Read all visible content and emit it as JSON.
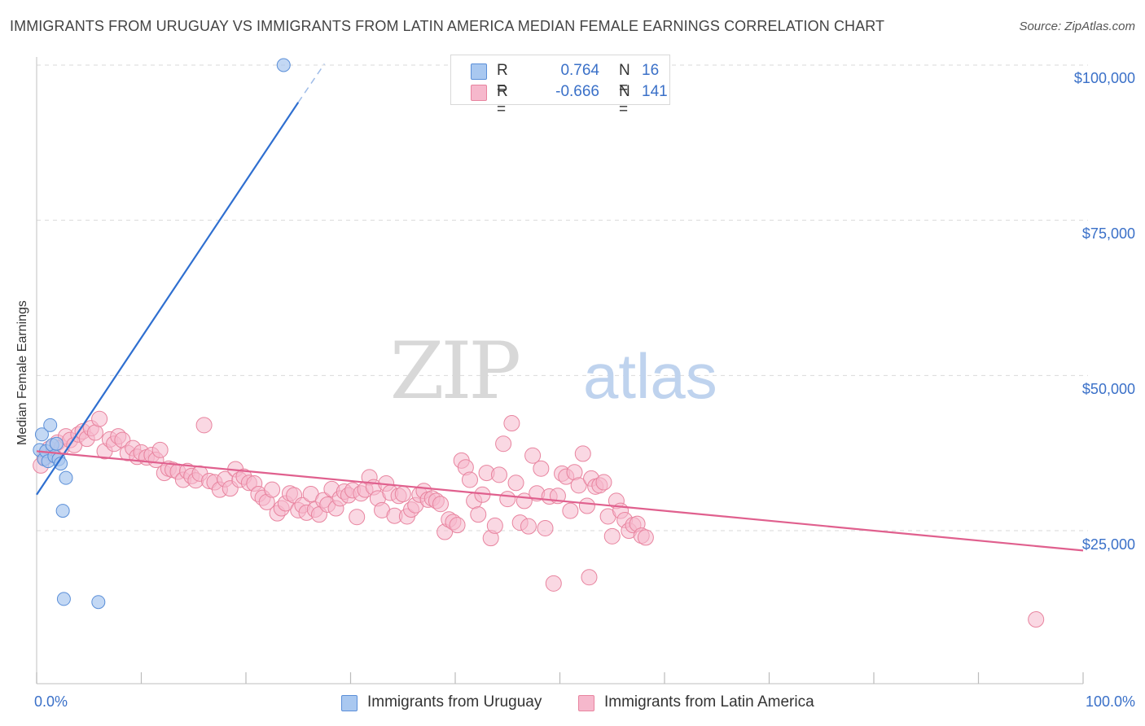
{
  "title": "IMMIGRANTS FROM URUGUAY VS IMMIGRANTS FROM LATIN AMERICA MEDIAN FEMALE EARNINGS CORRELATION CHART",
  "source": "Source: ZipAtlas.com",
  "watermark": {
    "zip": "ZIP",
    "atlas": "atlas"
  },
  "colors": {
    "uruguay_fill": "#a9c8f0",
    "uruguay_stroke": "#5b8fd8",
    "uruguay_line": "#2f6fd0",
    "latam_fill": "#f6b8cc",
    "latam_stroke": "#e8849f",
    "latam_line": "#e0608e",
    "grid": "#d9d9d9",
    "tick_text": "#3a70c8"
  },
  "legend_top": {
    "rows": [
      {
        "r_label": "R =",
        "r_value": "0.764",
        "n_label": "N =",
        "n_value": "16"
      },
      {
        "r_label": "R =",
        "r_value": "-0.666",
        "n_label": "N =",
        "n_value": "141"
      }
    ]
  },
  "legend_bottom": [
    "Immigrants from Uruguay",
    "Immigrants from Latin America"
  ],
  "chart_data": {
    "type": "scatter",
    "title": "IMMIGRANTS FROM URUGUAY VS IMMIGRANTS FROM LATIN AMERICA MEDIAN FEMALE EARNINGS CORRELATION CHART",
    "xlabel": "",
    "ylabel": "Median Female Earnings",
    "xlim": [
      0,
      100
    ],
    "ylim": [
      0,
      103000
    ],
    "x_tick_labels": [
      "0.0%",
      "100.0%"
    ],
    "y_ticks": [
      25000,
      50000,
      75000,
      100000
    ],
    "y_tick_labels": [
      "$25,000",
      "$50,000",
      "$75,000",
      "$100,000"
    ],
    "grid": true,
    "legend_position": "top-center",
    "series": [
      {
        "name": "Immigrants from Uruguay",
        "r": 0.764,
        "n": 16,
        "trend": {
          "x0": 0,
          "y0": 30800,
          "x1": 25,
          "y1": 94000,
          "dash_to_x": 27.5,
          "dash_to_y": 100200
        },
        "points": [
          [
            0.3,
            38000
          ],
          [
            0.5,
            40500
          ],
          [
            0.7,
            36500
          ],
          [
            0.9,
            37800
          ],
          [
            1.1,
            36200
          ],
          [
            1.3,
            42000
          ],
          [
            1.5,
            38800
          ],
          [
            1.7,
            37000
          ],
          [
            1.9,
            39000
          ],
          [
            2.1,
            36500
          ],
          [
            2.3,
            35800
          ],
          [
            2.5,
            28200
          ],
          [
            2.6,
            14000
          ],
          [
            2.8,
            33500
          ],
          [
            5.9,
            13500
          ],
          [
            23.6,
            100000
          ]
        ]
      },
      {
        "name": "Immigrants from Latin America",
        "r": -0.666,
        "n": 141,
        "trend": {
          "x0": 0,
          "y0": 37800,
          "x1": 100,
          "y1": 21800
        },
        "points": [
          [
            0.4,
            35500
          ],
          [
            0.8,
            36800
          ],
          [
            1.2,
            38200
          ],
          [
            1.6,
            37200
          ],
          [
            2.0,
            39200
          ],
          [
            2.4,
            38400
          ],
          [
            2.8,
            40200
          ],
          [
            3.2,
            39600
          ],
          [
            3.6,
            38800
          ],
          [
            4.0,
            40500
          ],
          [
            4.4,
            41000
          ],
          [
            4.8,
            39800
          ],
          [
            5.2,
            41500
          ],
          [
            5.6,
            40800
          ],
          [
            6.0,
            43000
          ],
          [
            6.5,
            37800
          ],
          [
            7.0,
            39700
          ],
          [
            7.4,
            39000
          ],
          [
            7.8,
            40200
          ],
          [
            8.2,
            39600
          ],
          [
            8.7,
            37500
          ],
          [
            9.2,
            38300
          ],
          [
            9.6,
            36900
          ],
          [
            10.0,
            37600
          ],
          [
            10.5,
            36800
          ],
          [
            11.0,
            37200
          ],
          [
            11.4,
            36400
          ],
          [
            11.8,
            38000
          ],
          [
            12.2,
            34300
          ],
          [
            12.6,
            35000
          ],
          [
            13.0,
            34800
          ],
          [
            13.5,
            34500
          ],
          [
            14.0,
            33200
          ],
          [
            14.4,
            34600
          ],
          [
            14.8,
            33800
          ],
          [
            15.2,
            33100
          ],
          [
            15.6,
            34200
          ],
          [
            16.0,
            42000
          ],
          [
            16.5,
            33000
          ],
          [
            17.0,
            32800
          ],
          [
            17.5,
            31600
          ],
          [
            18.0,
            33300
          ],
          [
            18.5,
            31800
          ],
          [
            19.0,
            34900
          ],
          [
            19.4,
            33200
          ],
          [
            19.8,
            33700
          ],
          [
            20.3,
            32700
          ],
          [
            20.8,
            32600
          ],
          [
            21.2,
            30900
          ],
          [
            21.6,
            30300
          ],
          [
            22.0,
            29600
          ],
          [
            22.5,
            31600
          ],
          [
            23.0,
            27800
          ],
          [
            23.4,
            28600
          ],
          [
            23.8,
            29400
          ],
          [
            24.2,
            31000
          ],
          [
            24.6,
            30700
          ],
          [
            25.0,
            28300
          ],
          [
            25.4,
            29100
          ],
          [
            25.8,
            27900
          ],
          [
            26.2,
            30900
          ],
          [
            26.6,
            28400
          ],
          [
            27.0,
            27600
          ],
          [
            27.4,
            29900
          ],
          [
            27.8,
            29200
          ],
          [
            28.2,
            31700
          ],
          [
            28.6,
            28600
          ],
          [
            29.0,
            30200
          ],
          [
            29.4,
            31300
          ],
          [
            29.8,
            30700
          ],
          [
            30.2,
            31500
          ],
          [
            30.6,
            27200
          ],
          [
            31.0,
            31000
          ],
          [
            31.4,
            31600
          ],
          [
            31.8,
            33600
          ],
          [
            32.2,
            32000
          ],
          [
            32.6,
            30200
          ],
          [
            33.0,
            28300
          ],
          [
            33.4,
            32600
          ],
          [
            33.8,
            31100
          ],
          [
            34.2,
            27400
          ],
          [
            34.6,
            30600
          ],
          [
            35.0,
            30900
          ],
          [
            35.4,
            27300
          ],
          [
            35.8,
            28400
          ],
          [
            36.2,
            29100
          ],
          [
            36.6,
            30800
          ],
          [
            37.0,
            31400
          ],
          [
            37.4,
            30000
          ],
          [
            37.8,
            30200
          ],
          [
            38.2,
            29800
          ],
          [
            38.6,
            29300
          ],
          [
            39.0,
            24800
          ],
          [
            39.4,
            26800
          ],
          [
            39.8,
            26400
          ],
          [
            40.2,
            25900
          ],
          [
            40.6,
            36300
          ],
          [
            41.0,
            35200
          ],
          [
            41.4,
            33200
          ],
          [
            41.8,
            29800
          ],
          [
            42.2,
            27600
          ],
          [
            42.6,
            30800
          ],
          [
            43.0,
            34300
          ],
          [
            43.4,
            23800
          ],
          [
            43.8,
            25800
          ],
          [
            44.2,
            34000
          ],
          [
            44.6,
            39000
          ],
          [
            45.0,
            30100
          ],
          [
            45.4,
            42300
          ],
          [
            45.8,
            32700
          ],
          [
            46.2,
            26300
          ],
          [
            46.6,
            29800
          ],
          [
            47.0,
            25700
          ],
          [
            47.4,
            37100
          ],
          [
            47.8,
            31000
          ],
          [
            48.2,
            35000
          ],
          [
            48.6,
            25400
          ],
          [
            49.0,
            30500
          ],
          [
            49.4,
            16500
          ],
          [
            49.8,
            30600
          ],
          [
            50.2,
            34200
          ],
          [
            50.6,
            33700
          ],
          [
            51.0,
            28200
          ],
          [
            51.4,
            34400
          ],
          [
            51.8,
            32300
          ],
          [
            52.2,
            37400
          ],
          [
            52.6,
            29000
          ],
          [
            53.0,
            33400
          ],
          [
            53.4,
            32100
          ],
          [
            53.8,
            32300
          ],
          [
            54.2,
            32800
          ],
          [
            54.6,
            27300
          ],
          [
            55.0,
            24100
          ],
          [
            55.4,
            29800
          ],
          [
            55.8,
            28200
          ],
          [
            56.2,
            26700
          ],
          [
            56.6,
            25000
          ],
          [
            57.0,
            25900
          ],
          [
            57.4,
            26100
          ],
          [
            57.8,
            24200
          ],
          [
            58.2,
            23900
          ],
          [
            52.8,
            17500
          ],
          [
            95.5,
            10700
          ]
        ]
      }
    ]
  }
}
